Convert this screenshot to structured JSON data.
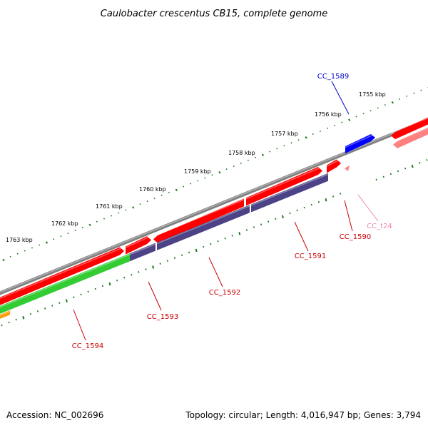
{
  "title": "Caulobacter crescentus CB15, complete genome",
  "footer": {
    "accession": "Accession: NC_002696",
    "summary": "Topology: circular; Length: 4,016,947 bp; Genes: 3,794"
  },
  "scale_ticks": [
    {
      "label": "1755 kbp"
    },
    {
      "label": "1756 kbp"
    },
    {
      "label": "1757 kbp"
    },
    {
      "label": "1758 kbp"
    },
    {
      "label": "1759 kbp"
    },
    {
      "label": "1760 kbp"
    },
    {
      "label": "1761 kbp"
    },
    {
      "label": "1762 kbp"
    },
    {
      "label": "1763 kbp"
    }
  ],
  "genes": [
    {
      "name": "CC_1589",
      "color": "#0000cc"
    },
    {
      "name": "CC_1590",
      "color": "#cc0000"
    },
    {
      "name": "CC_t24",
      "color": "#f08aa8"
    },
    {
      "name": "CC_1591",
      "color": "#cc0000"
    },
    {
      "name": "CC_1592",
      "color": "#cc0000"
    },
    {
      "name": "CC_1593",
      "color": "#cc0000"
    },
    {
      "name": "CC_1594",
      "color": "#cc0000"
    }
  ],
  "colors": {
    "backbone": "#808080",
    "forward_cds": "#ff0000",
    "trna": "#ff8080",
    "reverse_cds": "#4b4385",
    "green_feature": "#33cc33",
    "orange_feature": "#ff9900",
    "forward_gene": "#0000ff",
    "tick": "#1a7a1a"
  }
}
